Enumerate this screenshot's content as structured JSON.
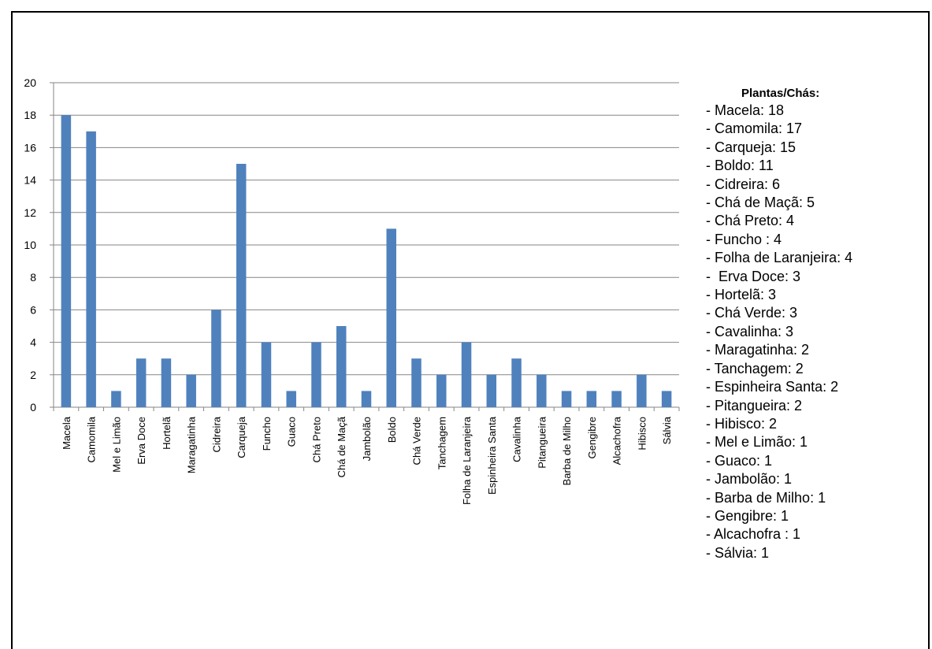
{
  "chart_data": {
    "type": "bar",
    "categories": [
      "Macela",
      "Camomila",
      "Mel e Limão",
      "Erva Doce",
      "Hortelã",
      "Maragatinha",
      "Cidreira",
      "Carqueja",
      "Funcho",
      "Guaco",
      "Chá Preto",
      "Chá de Maçã",
      "Jambolão",
      "Boldo",
      "Chá Verde",
      "Tanchagem",
      "Folha de Laranjeira",
      "Espinheira Santa",
      "Cavalinha",
      "Pitangueira",
      "Barba de Milho",
      "Gengibre",
      "Alcachofra",
      "Hibisco",
      "Sálvia"
    ],
    "values": [
      18,
      17,
      1,
      3,
      3,
      2,
      6,
      15,
      4,
      1,
      4,
      5,
      1,
      11,
      3,
      2,
      4,
      2,
      3,
      2,
      1,
      1,
      1,
      2,
      1
    ],
    "ylim": [
      0,
      20
    ],
    "yticks": [
      0,
      2,
      4,
      6,
      8,
      10,
      12,
      14,
      16,
      18,
      20
    ],
    "grid": true,
    "bar_color": "#4f81bd",
    "grid_color": "#868686"
  },
  "legend": {
    "title": "Plantas/Chás:",
    "items": [
      "- Macela: 18",
      "- Camomila: 17",
      "- Carqueja: 15",
      "- Boldo: 11",
      "- Cidreira: 6",
      "- Chá de Maçã: 5",
      "- Chá Preto: 4",
      "- Funcho : 4",
      "- Folha de Laranjeira: 4",
      "-  Erva Doce: 3",
      "- Hortelã: 3",
      "- Chá Verde: 3",
      "- Cavalinha: 3",
      "- Maragatinha: 2",
      "- Tanchagem: 2",
      "- Espinheira Santa: 2",
      "- Pitangueira: 2",
      "- Hibisco: 2",
      "- Mel e Limão: 1",
      "- Guaco: 1",
      "- Jambolão: 1",
      "- Barba de Milho: 1",
      "- Gengibre: 1",
      "- Alcachofra : 1",
      "- Sálvia: 1"
    ]
  }
}
